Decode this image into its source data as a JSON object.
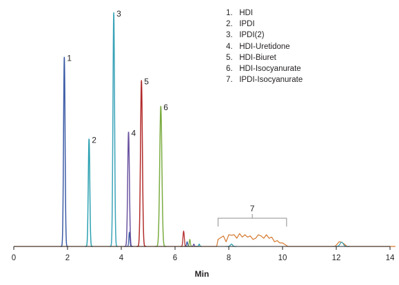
{
  "chart_data": {
    "type": "line",
    "title": "",
    "xlabel": "Min",
    "ylabel": "",
    "xlim": [
      0,
      14
    ],
    "ylim": [
      0,
      1
    ],
    "x_ticks": [
      "0",
      "2",
      "4",
      "6",
      "8",
      "10",
      "12",
      "14"
    ],
    "grid": false,
    "legend_position": "top-right",
    "legend": [
      {
        "number": "1.",
        "label": "HDI"
      },
      {
        "number": "2.",
        "label": "IPDI"
      },
      {
        "number": "3.",
        "label": "IPDI(2)"
      },
      {
        "number": "4.",
        "label": "HDI-Uretidone"
      },
      {
        "number": "5.",
        "label": "HDI-Biuret"
      },
      {
        "number": "6.",
        "label": "HDI-Isocyanurate"
      },
      {
        "number": "7.",
        "label": "IPDI-Isocyanurate"
      }
    ],
    "peaks": [
      {
        "label": "1",
        "rt": 1.88,
        "height": 0.81,
        "color": "#3b5ba5",
        "width": 0.028
      },
      {
        "label": "2",
        "rt": 2.8,
        "height": 0.46,
        "color": "#2aa0b0",
        "width": 0.028
      },
      {
        "label": "3",
        "rt": 3.72,
        "height": 1.0,
        "color": "#3aa3b8",
        "width": 0.03
      },
      {
        "label": "4",
        "rt": 4.27,
        "height": 0.49,
        "color": "#6b53a0",
        "width": 0.032
      },
      {
        "label": "5",
        "rt": 4.75,
        "height": 0.71,
        "color": "#b22a2a",
        "width": 0.035
      },
      {
        "label": "6",
        "rt": 5.47,
        "height": 0.6,
        "color": "#7aab3f",
        "width": 0.04
      }
    ],
    "minor_peaks": [
      {
        "rt": 4.3,
        "height": 0.06,
        "color": "#3b5ba5",
        "width": 0.02
      },
      {
        "rt": 6.32,
        "height": 0.065,
        "color": "#b22a2a",
        "width": 0.025
      },
      {
        "rt": 6.45,
        "height": 0.02,
        "color": "#3b5ba5",
        "width": 0.02
      },
      {
        "rt": 6.55,
        "height": 0.03,
        "color": "#7aab3f",
        "width": 0.02
      },
      {
        "rt": 6.7,
        "height": 0.01,
        "color": "#6b53a0",
        "width": 0.02
      },
      {
        "rt": 6.9,
        "height": 0.01,
        "color": "#2aa0b0",
        "width": 0.02
      },
      {
        "rt": 8.1,
        "height": 0.01,
        "color": "#2aa0b0",
        "width": 0.04
      },
      {
        "rt": 12.2,
        "height": 0.018,
        "color": "#3aa3b8",
        "width": 0.06
      }
    ],
    "series_7": {
      "label": "7",
      "color": "#d4772c",
      "x": [
        7.25,
        7.55,
        7.6,
        7.8,
        7.9,
        8.0,
        8.1,
        8.2,
        8.3,
        8.4,
        8.5,
        8.6,
        8.7,
        8.8,
        8.9,
        9.0,
        9.1,
        9.2,
        9.3,
        9.4,
        9.5,
        9.6,
        9.7,
        9.8,
        9.9,
        10.0,
        10.2,
        11.95,
        12.05,
        12.1,
        12.2,
        12.3,
        12.4,
        12.5,
        14.2
      ],
      "y": [
        0.0,
        0.0,
        0.03,
        0.045,
        0.02,
        0.05,
        0.048,
        0.05,
        0.035,
        0.055,
        0.04,
        0.05,
        0.04,
        0.045,
        0.03,
        0.035,
        0.05,
        0.045,
        0.035,
        0.05,
        0.035,
        0.04,
        0.02,
        0.025,
        0.015,
        0.015,
        0.0,
        0.0,
        0.012,
        0.02,
        0.018,
        0.01,
        0.0,
        0.0,
        0.0
      ]
    },
    "bracket": {
      "x_start": 7.6,
      "x_end": 10.15,
      "label": "7"
    }
  }
}
